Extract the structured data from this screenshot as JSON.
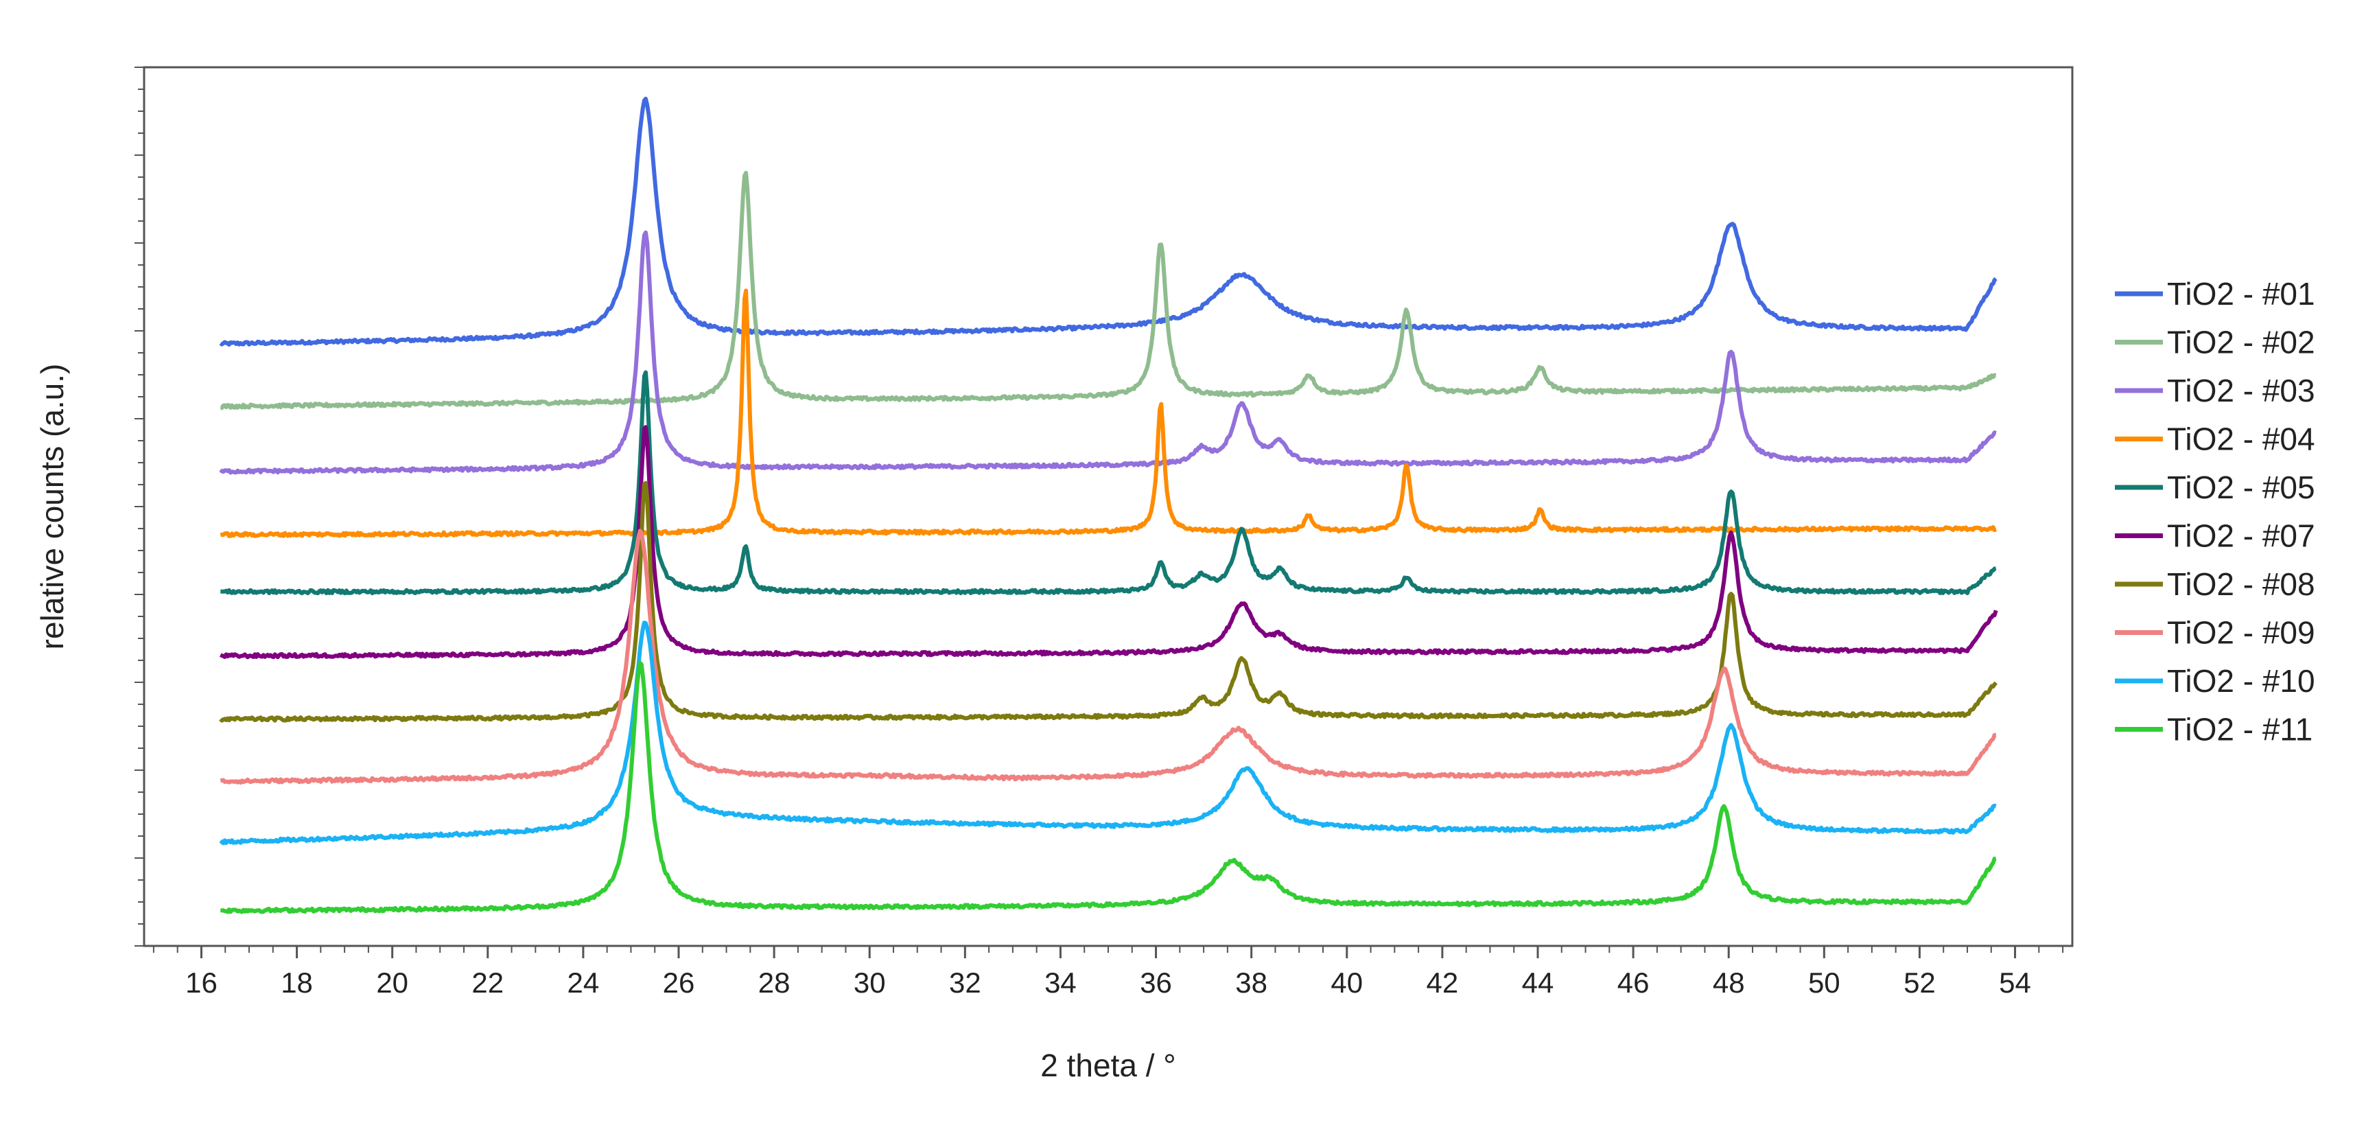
{
  "chart_data": {
    "type": "line",
    "title": "",
    "xlabel": "2 theta / °",
    "ylabel": "relative counts (a.u.)",
    "xlim": [
      14.8,
      55.2
    ],
    "ylim": [
      0,
      100
    ],
    "x_ticks": [
      16,
      18,
      20,
      22,
      24,
      26,
      28,
      30,
      32,
      34,
      36,
      38,
      40,
      42,
      44,
      46,
      48,
      50,
      52,
      54
    ],
    "x_range_data": [
      16.4,
      53.6
    ],
    "grid": false,
    "legend_position": "right",
    "series": [
      {
        "name": "TiO2 - #01",
        "color": "#4169e1",
        "baseline": [
          [
            16.4,
            68.5
          ],
          [
            36,
            70.2
          ],
          [
            53.0,
            70.2
          ],
          [
            53.6,
            76
          ]
        ],
        "peaks": [
          {
            "x": 25.3,
            "h": 27,
            "w": 0.28
          },
          {
            "x": 37.8,
            "h": 6.2,
            "w": 0.7
          },
          {
            "x": 48.05,
            "h": 12,
            "w": 0.35
          }
        ]
      },
      {
        "name": "TiO2 - #02",
        "color": "#8fbc8f",
        "baseline": [
          [
            16.4,
            61.4
          ],
          [
            53.0,
            63.5
          ],
          [
            53.6,
            65
          ]
        ],
        "peaks": [
          {
            "x": 27.4,
            "h": 26,
            "w": 0.15
          },
          {
            "x": 36.1,
            "h": 17.5,
            "w": 0.14
          },
          {
            "x": 39.2,
            "h": 2.2,
            "w": 0.15
          },
          {
            "x": 41.25,
            "h": 9.5,
            "w": 0.15
          },
          {
            "x": 44.05,
            "h": 2.8,
            "w": 0.16
          }
        ]
      },
      {
        "name": "TiO2 - #03",
        "color": "#9370db",
        "baseline": [
          [
            16.4,
            54.0
          ],
          [
            53.0,
            55.3
          ],
          [
            53.6,
            58.5
          ]
        ],
        "peaks": [
          {
            "x": 25.3,
            "h": 27,
            "w": 0.17
          },
          {
            "x": 36.95,
            "h": 1.6,
            "w": 0.2
          },
          {
            "x": 37.8,
            "h": 6.8,
            "w": 0.24
          },
          {
            "x": 38.6,
            "h": 2.2,
            "w": 0.2
          },
          {
            "x": 48.05,
            "h": 12.5,
            "w": 0.2
          }
        ]
      },
      {
        "name": "TiO2 - #04",
        "color": "#ff8c00",
        "baseline": [
          [
            16.4,
            46.8
          ],
          [
            53.6,
            47.5
          ]
        ],
        "peaks": [
          {
            "x": 27.4,
            "h": 28,
            "w": 0.09
          },
          {
            "x": 36.1,
            "h": 14.5,
            "w": 0.09
          },
          {
            "x": 39.2,
            "h": 1.8,
            "w": 0.1
          },
          {
            "x": 41.25,
            "h": 7.5,
            "w": 0.1
          },
          {
            "x": 44.05,
            "h": 2.3,
            "w": 0.1
          }
        ]
      },
      {
        "name": "TiO2 - #05",
        "color": "#137a72",
        "baseline": [
          [
            16.4,
            40.3
          ],
          [
            53.0,
            40.3
          ],
          [
            53.6,
            43
          ]
        ],
        "peaks": [
          {
            "x": 25.3,
            "h": 25,
            "w": 0.13
          },
          {
            "x": 27.4,
            "h": 5,
            "w": 0.1
          },
          {
            "x": 36.1,
            "h": 3.2,
            "w": 0.11
          },
          {
            "x": 36.95,
            "h": 1.6,
            "w": 0.2
          },
          {
            "x": 37.8,
            "h": 7,
            "w": 0.2
          },
          {
            "x": 38.6,
            "h": 2.2,
            "w": 0.18
          },
          {
            "x": 41.25,
            "h": 1.6,
            "w": 0.12
          },
          {
            "x": 48.05,
            "h": 11.5,
            "w": 0.17
          }
        ]
      },
      {
        "name": "TiO2 - #07",
        "color": "#800080",
        "baseline": [
          [
            16.4,
            33.0
          ],
          [
            53.0,
            33.6
          ],
          [
            53.6,
            38
          ]
        ],
        "peaks": [
          {
            "x": 25.3,
            "h": 26,
            "w": 0.15
          },
          {
            "x": 37.8,
            "h": 5.5,
            "w": 0.3
          },
          {
            "x": 38.6,
            "h": 1.5,
            "w": 0.25
          },
          {
            "x": 48.05,
            "h": 13.5,
            "w": 0.18
          }
        ]
      },
      {
        "name": "TiO2 - #08",
        "color": "#7d7a10",
        "baseline": [
          [
            16.4,
            25.8
          ],
          [
            53.0,
            26.3
          ],
          [
            53.6,
            30
          ]
        ],
        "peaks": [
          {
            "x": 25.3,
            "h": 27,
            "w": 0.14
          },
          {
            "x": 36.95,
            "h": 1.8,
            "w": 0.18
          },
          {
            "x": 37.8,
            "h": 6.5,
            "w": 0.22
          },
          {
            "x": 38.6,
            "h": 2.2,
            "w": 0.2
          },
          {
            "x": 48.05,
            "h": 14,
            "w": 0.16
          }
        ]
      },
      {
        "name": "TiO2 - #09",
        "color": "#f08080",
        "baseline": [
          [
            16.4,
            18.7
          ],
          [
            30.0,
            19.3
          ],
          [
            33.0,
            19.0
          ],
          [
            53.0,
            19.6
          ],
          [
            53.6,
            24
          ]
        ],
        "peaks": [
          {
            "x": 25.2,
            "h": 28,
            "w": 0.28
          },
          {
            "x": 37.7,
            "h": 5.5,
            "w": 0.55
          },
          {
            "x": 47.9,
            "h": 12,
            "w": 0.3
          }
        ]
      },
      {
        "name": "TiO2 - #10",
        "color": "#1ab2f5",
        "baseline": [
          [
            16.4,
            11.8
          ],
          [
            24.0,
            13.0
          ],
          [
            26.5,
            14.5
          ],
          [
            35.0,
            13.5
          ],
          [
            47.0,
            13.0
          ],
          [
            53.0,
            13.0
          ],
          [
            53.6,
            16
          ]
        ],
        "peaks": [
          {
            "x": 25.3,
            "h": 23,
            "w": 0.28
          },
          {
            "x": 37.9,
            "h": 6.8,
            "w": 0.45
          },
          {
            "x": 48.05,
            "h": 12,
            "w": 0.3
          }
        ]
      },
      {
        "name": "TiO2 - #11",
        "color": "#32cd32",
        "baseline": [
          [
            16.4,
            4.0
          ],
          [
            53.0,
            5.0
          ],
          [
            53.6,
            10
          ]
        ],
        "peaks": [
          {
            "x": 25.2,
            "h": 28,
            "w": 0.22
          },
          {
            "x": 37.6,
            "h": 4.8,
            "w": 0.45
          },
          {
            "x": 38.4,
            "h": 2.0,
            "w": 0.3
          },
          {
            "x": 47.9,
            "h": 11,
            "w": 0.22
          }
        ]
      }
    ]
  }
}
